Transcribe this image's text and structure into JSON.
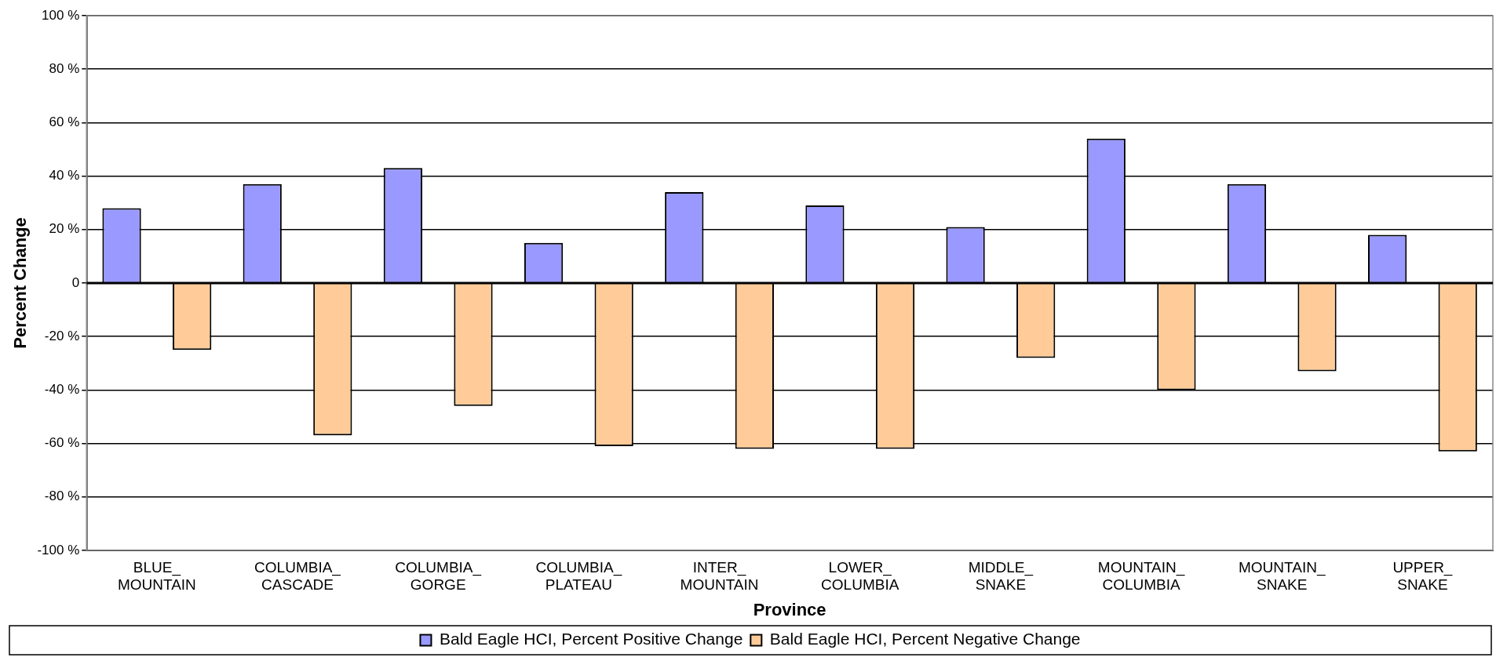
{
  "chart_data": {
    "type": "bar",
    "xlabel": "Province",
    "ylabel": "Percent Change",
    "categories": [
      "BLUE_\nMOUNTAIN",
      "COLUMBIA_\nCASCADE",
      "COLUMBIA_\nGORGE",
      "COLUMBIA_\nPLATEAU",
      "INTER_\nMOUNTAIN",
      "LOWER_\nCOLUMBIA",
      "MIDDLE_\nSNAKE",
      "MOUNTAIN_\nCOLUMBIA",
      "MOUNTAIN_\nSNAKE",
      "UPPER_\nSNAKE"
    ],
    "series": [
      {
        "name": "Bald Eagle HCI, Percent Positive Change",
        "color": "#9999ff",
        "values": [
          28,
          37,
          43,
          15,
          34,
          29,
          21,
          54,
          37,
          18
        ]
      },
      {
        "name": "Bald Eagle HCI, Percent Negative Change",
        "color": "#ffcc99",
        "values": [
          -25,
          -57,
          -46,
          -61,
          -62,
          -62,
          -28,
          -40,
          -33,
          -63
        ]
      }
    ],
    "ylim": [
      -100,
      100
    ],
    "yticks": [
      {
        "value": -100,
        "label": "-100 %"
      },
      {
        "value": -80,
        "label": "-80 %"
      },
      {
        "value": -60,
        "label": "-60 %"
      },
      {
        "value": -40,
        "label": "-40 %"
      },
      {
        "value": -20,
        "label": "-20 %"
      },
      0,
      {
        "value": 20,
        "label": "20 %"
      },
      {
        "value": 40,
        "label": "40 %"
      },
      {
        "value": 60,
        "label": "60 %"
      },
      {
        "value": 80,
        "label": "80 %"
      },
      {
        "value": 100,
        "label": "100 %"
      }
    ],
    "grid": "y",
    "legend": "bottom"
  }
}
